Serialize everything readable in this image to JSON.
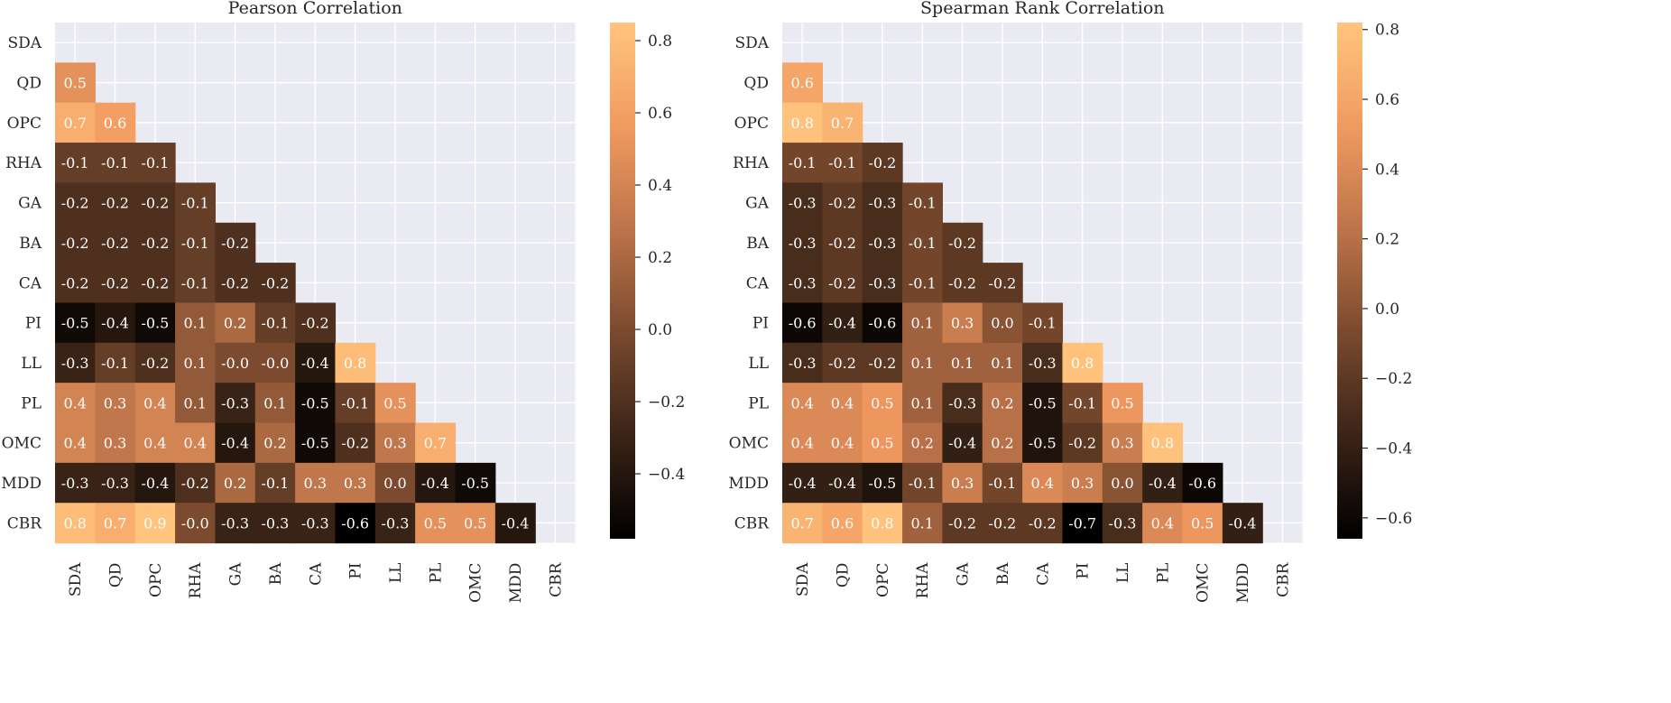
{
  "chart_data": [
    {
      "type": "heatmap",
      "title": "Pearson Correlation",
      "labels": [
        "SDA",
        "QD",
        "OPC",
        "RHA",
        "GA",
        "BA",
        "CA",
        "PI",
        "LL",
        "PL",
        "OMC",
        "MDD",
        "CBR"
      ],
      "cell_labels": [
        [],
        [
          "0.5"
        ],
        [
          "0.7",
          "0.6"
        ],
        [
          "-0.1",
          "-0.1",
          "-0.1"
        ],
        [
          "-0.2",
          "-0.2",
          "-0.2",
          "-0.1"
        ],
        [
          "-0.2",
          "-0.2",
          "-0.2",
          "-0.1",
          "-0.2"
        ],
        [
          "-0.2",
          "-0.2",
          "-0.2",
          "-0.1",
          "-0.2",
          "-0.2"
        ],
        [
          "-0.5",
          "-0.4",
          "-0.5",
          "0.1",
          "0.2",
          "-0.1",
          "-0.2"
        ],
        [
          "-0.3",
          "-0.1",
          "-0.2",
          "0.1",
          "-0.0",
          "-0.0",
          "-0.4",
          "0.8"
        ],
        [
          "0.4",
          "0.3",
          "0.4",
          "0.1",
          "-0.3",
          "0.1",
          "-0.5",
          "-0.1",
          "0.5"
        ],
        [
          "0.4",
          "0.3",
          "0.4",
          "0.4",
          "-0.4",
          "0.2",
          "-0.5",
          "-0.2",
          "0.3",
          "0.7"
        ],
        [
          "-0.3",
          "-0.3",
          "-0.4",
          "-0.2",
          "0.2",
          "-0.1",
          "0.3",
          "0.3",
          "0.0",
          "-0.4",
          "-0.5"
        ],
        [
          "0.8",
          "0.7",
          "0.9",
          "-0.0",
          "-0.3",
          "-0.3",
          "-0.3",
          "-0.6",
          "-0.3",
          "0.5",
          "0.5",
          "-0.4"
        ]
      ],
      "colorbar": {
        "vmin": -0.58,
        "vmax": 0.85,
        "ticks": [
          0.8,
          0.6,
          0.4,
          0.2,
          0.0,
          -0.2,
          -0.4
        ],
        "tick_labels": [
          "0.8",
          "0.6",
          "0.4",
          "0.2",
          "0.0",
          "−0.2",
          "−0.4"
        ]
      },
      "mask": "upper-triangle-including-diagonal",
      "colormap": "copper"
    },
    {
      "type": "heatmap",
      "title": "Spearman Rank Correlation",
      "labels": [
        "SDA",
        "QD",
        "OPC",
        "RHA",
        "GA",
        "BA",
        "CA",
        "PI",
        "LL",
        "PL",
        "OMC",
        "MDD",
        "CBR"
      ],
      "cell_labels": [
        [],
        [
          "0.6"
        ],
        [
          "0.8",
          "0.7"
        ],
        [
          "-0.1",
          "-0.1",
          "-0.2"
        ],
        [
          "-0.3",
          "-0.2",
          "-0.3",
          "-0.1"
        ],
        [
          "-0.3",
          "-0.2",
          "-0.3",
          "-0.1",
          "-0.2"
        ],
        [
          "-0.3",
          "-0.2",
          "-0.3",
          "-0.1",
          "-0.2",
          "-0.2"
        ],
        [
          "-0.6",
          "-0.4",
          "-0.6",
          "0.1",
          "0.3",
          "0.0",
          "-0.1"
        ],
        [
          "-0.3",
          "-0.2",
          "-0.2",
          "0.1",
          "0.1",
          "0.1",
          "-0.3",
          "0.8"
        ],
        [
          "0.4",
          "0.4",
          "0.5",
          "0.1",
          "-0.3",
          "0.2",
          "-0.5",
          "-0.1",
          "0.5"
        ],
        [
          "0.4",
          "0.4",
          "0.5",
          "0.2",
          "-0.4",
          "0.2",
          "-0.5",
          "-0.2",
          "0.3",
          "0.8"
        ],
        [
          "-0.4",
          "-0.4",
          "-0.5",
          "-0.1",
          "0.3",
          "-0.1",
          "0.4",
          "0.3",
          "0.0",
          "-0.4",
          "-0.6"
        ],
        [
          "0.7",
          "0.6",
          "0.8",
          "0.1",
          "-0.2",
          "-0.2",
          "-0.2",
          "-0.7",
          "-0.3",
          "0.4",
          "0.5",
          "-0.4"
        ]
      ],
      "colorbar": {
        "vmin": -0.66,
        "vmax": 0.82,
        "ticks": [
          0.8,
          0.6,
          0.4,
          0.2,
          0.0,
          -0.2,
          -0.4,
          -0.6
        ],
        "tick_labels": [
          "0.8",
          "0.6",
          "0.4",
          "0.2",
          "0.0",
          "−0.2",
          "−0.4",
          "−0.6"
        ]
      },
      "mask": "upper-triangle-including-diagonal",
      "colormap": "copper"
    }
  ],
  "colors": {
    "plot_background": "#eaeaf2",
    "grid": "#ffffff",
    "cmap_stops": [
      "#000000",
      "#3a2417",
      "#7a4a2e",
      "#bd744a",
      "#f19a60",
      "#ffc57e"
    ],
    "text": "#262626",
    "cell_text": "#ffffff"
  }
}
